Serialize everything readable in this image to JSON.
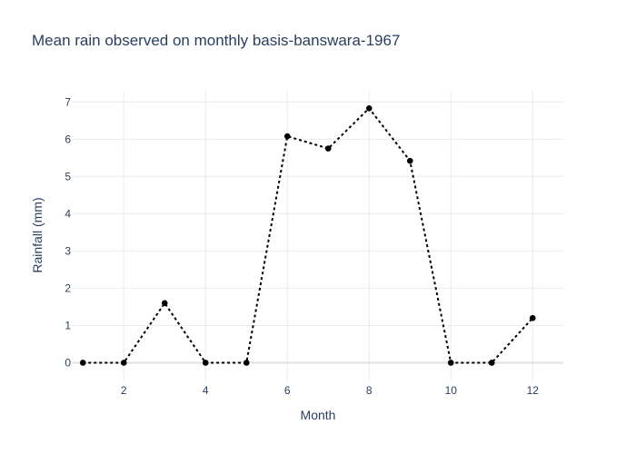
{
  "chart_data": {
    "type": "line",
    "title": "Mean rain observed on monthly basis-banswara-1967",
    "xlabel": "Month",
    "ylabel": "Rainfall (mm)",
    "x": [
      1,
      2,
      3,
      4,
      5,
      6,
      7,
      8,
      9,
      10,
      11,
      12
    ],
    "series": [
      {
        "values": [
          0,
          0,
          1.6,
          0,
          0,
          6.08,
          5.75,
          6.83,
          5.42,
          0,
          0,
          1.2
        ],
        "color": "#000000",
        "marker": "circle",
        "line_style": "dotted"
      }
    ],
    "xlim": [
      0.75,
      12.75
    ],
    "ylim": [
      -0.5,
      7.3
    ],
    "x_ticks": [
      2,
      4,
      6,
      8,
      10,
      12
    ],
    "y_ticks": [
      0,
      1,
      2,
      3,
      4,
      5,
      6,
      7
    ],
    "grid": true
  }
}
